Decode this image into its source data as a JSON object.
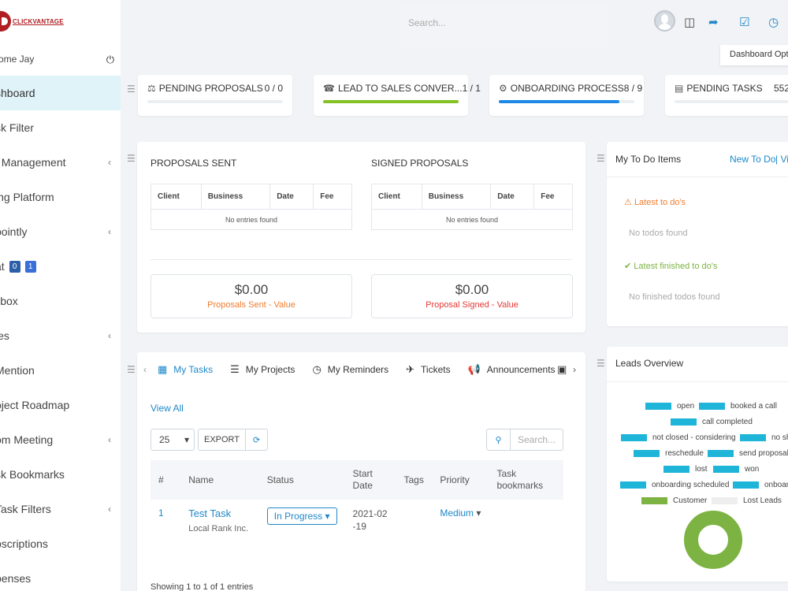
{
  "app": {
    "logo_text": "CLICKVANTAGE"
  },
  "sidebar": {
    "welcome": "ome Jay",
    "items": [
      {
        "label": "shboard",
        "active": true,
        "chevron": false
      },
      {
        "label": "sk Filter",
        "active": false,
        "chevron": false
      },
      {
        "label": "t Management",
        "active": false,
        "chevron": true
      },
      {
        "label": "ing Platform",
        "active": false,
        "chevron": false
      },
      {
        "label": "pointly",
        "active": false,
        "chevron": true
      },
      {
        "label": "at",
        "active": false,
        "chevron": false,
        "badges": [
          "0",
          "1"
        ]
      },
      {
        "label": "ilbox",
        "active": false,
        "chevron": false
      },
      {
        "label": "les",
        "active": false,
        "chevron": true
      },
      {
        "label": "Mention",
        "active": false,
        "chevron": false
      },
      {
        "label": "oject Roadmap",
        "active": false,
        "chevron": false
      },
      {
        "label": "om Meeting",
        "active": false,
        "chevron": true
      },
      {
        "label": "sk Bookmarks",
        "active": false,
        "chevron": false
      },
      {
        "label": "Task Filters",
        "active": false,
        "chevron": true
      },
      {
        "label": "bscriptions",
        "active": false,
        "chevron": false
      },
      {
        "label": "penses",
        "active": false,
        "chevron": false
      }
    ]
  },
  "header": {
    "search_placeholder": "Search...",
    "tooltip": "Dashboard Opt"
  },
  "stats": [
    {
      "title": "PENDING PROPOSALS",
      "value": "0 / 0",
      "progress": 0,
      "color": "#e8eaed"
    },
    {
      "title": "LEAD TO SALES CONVER...",
      "value": "1 / 1",
      "progress": 100,
      "color": "#84c225"
    },
    {
      "title": "ONBOARDING PROCESS",
      "value": "8 / 9",
      "progress": 89,
      "color": "#1e88e5"
    },
    {
      "title": "PENDING TASKS",
      "value": "552",
      "progress": 0,
      "color": "#e8eaed"
    }
  ],
  "proposals": {
    "sent_title": "PROPOSALS SENT",
    "signed_title": "SIGNED PROPOSALS",
    "columns": [
      "Client",
      "Business",
      "Date",
      "Fee"
    ],
    "empty": "No entries found",
    "sent_value": "$0.00",
    "sent_label": "Proposals Sent - Value",
    "signed_value": "$0.00",
    "signed_label": "Proposal Signed - Value"
  },
  "todo": {
    "title": "My To Do Items",
    "new_link": "New To Do",
    "view_link": "| Vi",
    "latest": "Latest to do's",
    "no_todos": "No todos found",
    "finished": "Latest finished to do's",
    "no_finished": "No finished todos found"
  },
  "tasks": {
    "tabs": [
      "My Tasks",
      "My Projects",
      "My Reminders",
      "Tickets",
      "Announcements"
    ],
    "view_all": "View All",
    "page_size": "25",
    "export": "EXPORT",
    "search_placeholder": "Search...",
    "columns": [
      "#",
      "Name",
      "Status",
      "Start Date",
      "Tags",
      "Priority",
      "Task bookmarks"
    ],
    "rows": [
      {
        "num": "1",
        "name": "Test Task",
        "client": "Local Rank Inc.",
        "status": "In Progress",
        "start": "2021-02-19",
        "tags": "",
        "priority": "Medium"
      }
    ],
    "footer": "Showing 1 to 1 of 1 entries"
  },
  "leads": {
    "title": "Leads Overview",
    "legend": [
      {
        "label": "open",
        "color": "#1fb5d9"
      },
      {
        "label": "booked a call",
        "color": "#1fb5d9"
      },
      {
        "label": "call completed",
        "color": "#1fb5d9"
      },
      {
        "label": "not closed - considering",
        "color": "#1fb5d9"
      },
      {
        "label": "no sh",
        "color": "#1fb5d9"
      },
      {
        "label": "reschedule",
        "color": "#1fb5d9"
      },
      {
        "label": "send proposal",
        "color": "#1fb5d9"
      },
      {
        "label": "lost",
        "color": "#1fb5d9"
      },
      {
        "label": "won",
        "color": "#1fb5d9"
      },
      {
        "label": "onboarding scheduled",
        "color": "#1fb5d9"
      },
      {
        "label": "onboar",
        "color": "#1fb5d9"
      },
      {
        "label": "Customer",
        "color": "#7cb342"
      },
      {
        "label": "Lost Leads",
        "color": "#eeeeee"
      }
    ],
    "chart_data": {
      "type": "pie",
      "series": [
        {
          "values": [
            1,
            0
          ]
        }
      ],
      "colors": [
        "#7cb342",
        "#eeeeee"
      ]
    }
  }
}
